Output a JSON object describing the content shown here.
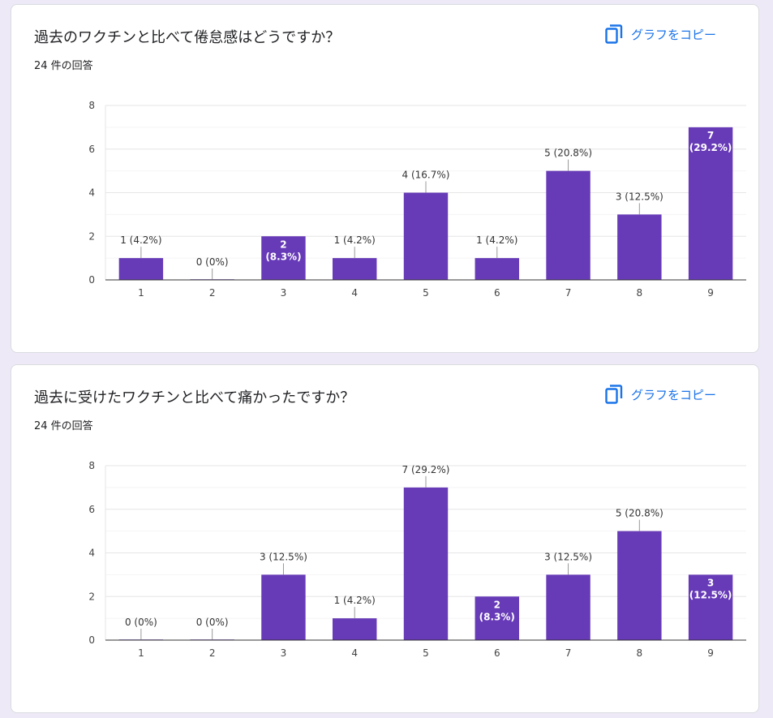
{
  "accent_color": "#673ab7",
  "link_color": "#1a73e8",
  "cards": [
    {
      "title": "過去のワクチンと比べて倦怠感はどうですか？",
      "response_count": "24 件の回答",
      "copy_label": "グラフをコピー",
      "copy_icon": "copy-icon"
    },
    {
      "title": "過去に受けたワクチンと比べて痛かったですか？",
      "response_count": "24 件の回答",
      "copy_label": "グラフをコピー",
      "copy_icon": "copy-icon"
    }
  ],
  "chart_data": [
    {
      "type": "bar",
      "categories": [
        "1",
        "2",
        "3",
        "4",
        "5",
        "6",
        "7",
        "8",
        "9"
      ],
      "values": [
        1,
        0,
        2,
        1,
        4,
        1,
        5,
        3,
        7
      ],
      "labels": [
        "1 (4.2%)",
        "0 (0%)",
        "2 (8.3%)",
        "1 (4.2%)",
        "4 (16.7%)",
        "1 (4.2%)",
        "5 (20.8%)",
        "3 (12.5%)",
        "7 (29.2%)"
      ],
      "inside_label": [
        false,
        false,
        true,
        false,
        false,
        false,
        false,
        false,
        true
      ],
      "y_ticks": [
        "0",
        "2",
        "4",
        "6",
        "8"
      ],
      "ylim": [
        0,
        8
      ],
      "grid": true,
      "color": "#673ab7"
    },
    {
      "type": "bar",
      "categories": [
        "1",
        "2",
        "3",
        "4",
        "5",
        "6",
        "7",
        "8",
        "9"
      ],
      "values": [
        0,
        0,
        3,
        1,
        7,
        2,
        3,
        5,
        3
      ],
      "labels": [
        "0 (0%)",
        "0 (0%)",
        "3 (12.5%)",
        "1 (4.2%)",
        "7 (29.2%)",
        "2 (8.3%)",
        "3 (12.5%)",
        "5 (20.8%)",
        "3 (12.5%)"
      ],
      "inside_label": [
        false,
        false,
        false,
        false,
        false,
        true,
        false,
        false,
        true
      ],
      "y_ticks": [
        "0",
        "2",
        "4",
        "6",
        "8"
      ],
      "ylim": [
        0,
        8
      ],
      "grid": true,
      "color": "#673ab7"
    }
  ]
}
